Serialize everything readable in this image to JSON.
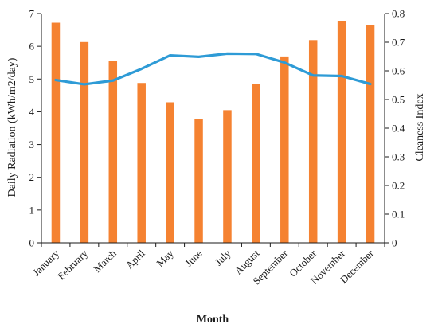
{
  "chart_data": {
    "type": "bar",
    "title": "",
    "xlabel": "Month",
    "ylabel": "Daily Radiation (kWh/m2/day)",
    "y2label": "Cleaness Index",
    "categories": [
      "January",
      "February",
      "March",
      "April",
      "May",
      "June",
      "July",
      "August",
      "September",
      "October",
      "November",
      "December"
    ],
    "ylim": [
      0,
      7
    ],
    "y2lim": [
      0,
      0.8
    ],
    "yticks": [
      "0",
      "1",
      "2",
      "3",
      "4",
      "5",
      "6",
      "7"
    ],
    "y2ticks": [
      "0",
      "0.1",
      "0.2",
      "0.3",
      "0.4",
      "0.5",
      "0.6",
      "0.7",
      "0.8"
    ],
    "grid": false,
    "legend": "none",
    "series": [
      {
        "axis": "left",
        "mark": "bar",
        "color": "#F58231",
        "values": [
          6.72,
          6.13,
          5.55,
          4.88,
          4.29,
          3.79,
          4.05,
          4.86,
          5.69,
          6.19,
          6.77,
          6.65
        ]
      },
      {
        "axis": "right",
        "mark": "line",
        "color": "#2E9BD6",
        "values": [
          0.568,
          0.553,
          0.566,
          0.607,
          0.654,
          0.649,
          0.66,
          0.659,
          0.629,
          0.584,
          0.582,
          0.554
        ]
      }
    ]
  }
}
